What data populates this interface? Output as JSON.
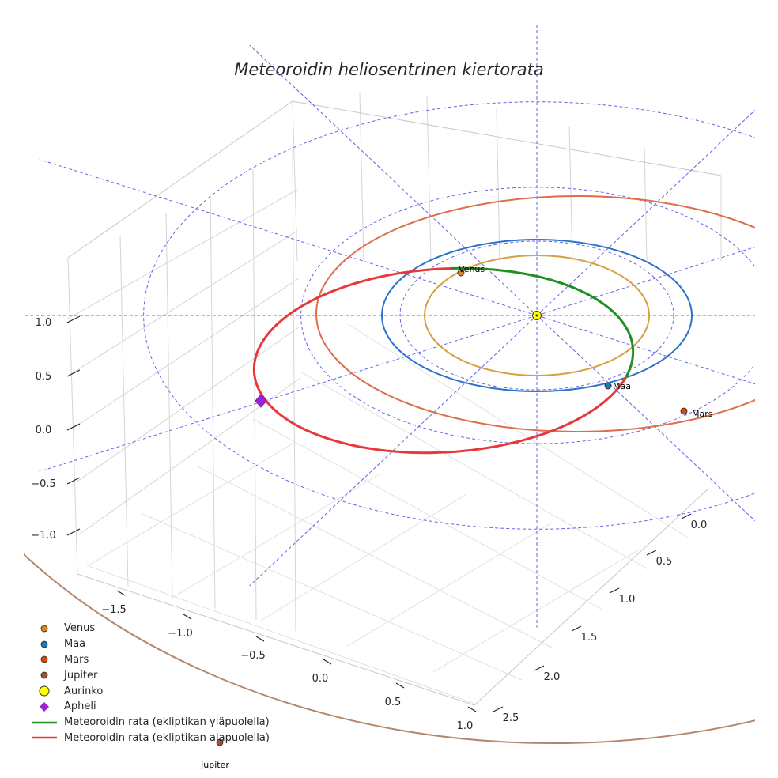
{
  "chart_data": {
    "type": "3d-orbit",
    "title": "Meteoroidin heliosentrinen kiertorata",
    "x_ticks": [
      "0.0",
      "0.5",
      "1.0",
      "1.5",
      "2.0",
      "2.5"
    ],
    "y_ticks": [
      "−1.5",
      "−1.0",
      "−0.5",
      "0.0",
      "0.5",
      "1.0"
    ],
    "z_ticks": [
      "1.0",
      "0.5",
      "0.0",
      "−0.5",
      "−1.0"
    ],
    "xlim": [
      -0.2,
      2.6
    ],
    "ylim": [
      -1.8,
      1.1
    ],
    "zlim": [
      -1.4,
      1.3
    ],
    "orbits": [
      {
        "name": "Venus",
        "semi_major_axis_au": 0.72,
        "color": "#d4a040"
      },
      {
        "name": "Maa",
        "semi_major_axis_au": 1.0,
        "color": "#2a73c9"
      },
      {
        "name": "Mars",
        "semi_major_axis_au": 1.52,
        "color": "#de6d4a"
      },
      {
        "name": "Jupiter",
        "semi_major_axis_au": 5.2,
        "color": "#b5876a"
      }
    ],
    "planets": [
      {
        "name": "Venus",
        "label": "Venus",
        "color": "#d88a1e"
      },
      {
        "name": "Maa",
        "label": "Maa",
        "color": "#1f77b4"
      },
      {
        "name": "Mars",
        "label": "Mars",
        "color": "#d9480f"
      },
      {
        "name": "Jupiter",
        "label": "Jupiter",
        "color": "#a0522d"
      }
    ],
    "meteoroid_orbit": {
      "perihelion_au": 0.89,
      "aphelion_au": 1.85,
      "above_ecliptic_color": "#1f8f1f",
      "below_ecliptic_color": "#e8383a"
    },
    "reference_rings_au": [
      1.5,
      2.5
    ],
    "legend": [
      {
        "label": "Venus",
        "marker": "circle",
        "color": "#d88a1e"
      },
      {
        "label": "Maa",
        "marker": "circle",
        "color": "#1f77b4"
      },
      {
        "label": "Mars",
        "marker": "circle",
        "color": "#d9480f"
      },
      {
        "label": "Jupiter",
        "marker": "circle",
        "color": "#a0522d"
      },
      {
        "label": "Aurinko",
        "marker": "sun",
        "color": "#ffff00"
      },
      {
        "label": "Apheli",
        "marker": "diamond",
        "color": "#9b22d6"
      },
      {
        "label": "Meteoroidin rata (ekliptikan yläpuolella)",
        "marker": "line",
        "color": "#1f8f1f"
      },
      {
        "label": "Meteoroidin rata (ekliptikan alapuolella)",
        "marker": "line",
        "color": "#e8383a"
      }
    ]
  }
}
